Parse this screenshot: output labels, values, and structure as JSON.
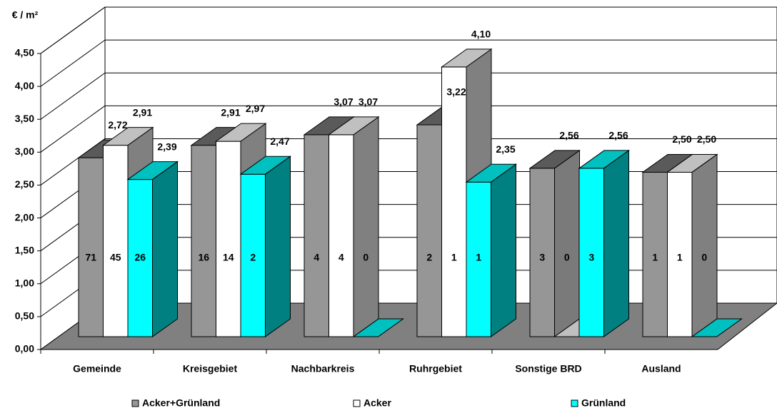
{
  "chart_data": {
    "type": "bar3d",
    "y_label": "€ / m²",
    "categories": [
      "Gemeinde",
      "Kreisgebiet",
      "Nachbarkreis",
      "Ruhrgebiet",
      "Sonstige BRD",
      "Ausland"
    ],
    "series": [
      {
        "name": "Acker+Grünland",
        "color": "#969696",
        "top": "#5a5a5a",
        "side": "#7a7a7a",
        "values": [
          2.72,
          2.91,
          3.07,
          3.22,
          2.56,
          2.5
        ],
        "value_labels": [
          "2,72",
          "2,91",
          "3,07",
          "3,22",
          "2,56",
          "2,50"
        ],
        "counts": [
          71,
          16,
          4,
          2,
          3,
          1
        ]
      },
      {
        "name": "Acker",
        "color": "#ffffff",
        "top": "#c0c0c0",
        "side": "#808080",
        "values": [
          2.91,
          2.97,
          3.07,
          4.1,
          0,
          2.5
        ],
        "value_labels": [
          "2,91",
          "2,97",
          "3,07",
          "4,10",
          null,
          "2,50"
        ],
        "counts": [
          45,
          14,
          4,
          1,
          0,
          1
        ]
      },
      {
        "name": "Grünland",
        "color": "#00ffff",
        "top": "#00c0c0",
        "side": "#008080",
        "values": [
          2.39,
          2.47,
          0,
          2.35,
          2.56,
          0
        ],
        "value_labels": [
          "2,39",
          "2,47",
          null,
          "2,35",
          "2,56",
          null
        ],
        "counts": [
          26,
          2,
          0,
          1,
          3,
          0
        ]
      }
    ],
    "ylim": [
      0,
      4.5
    ],
    "yticks": [
      {
        "value": 0,
        "label": "0,00"
      },
      {
        "value": 0.5,
        "label": "0,50"
      },
      {
        "value": 1,
        "label": "1,00"
      },
      {
        "value": 1.5,
        "label": "1,50"
      },
      {
        "value": 2,
        "label": "2,00"
      },
      {
        "value": 2.5,
        "label": "2,50"
      },
      {
        "value": 3,
        "label": "3,00"
      },
      {
        "value": 3.5,
        "label": "3,50"
      },
      {
        "value": 4,
        "label": "4,00"
      },
      {
        "value": 4.5,
        "label": "4,50"
      }
    ],
    "grid": true,
    "legend": "bottom"
  }
}
